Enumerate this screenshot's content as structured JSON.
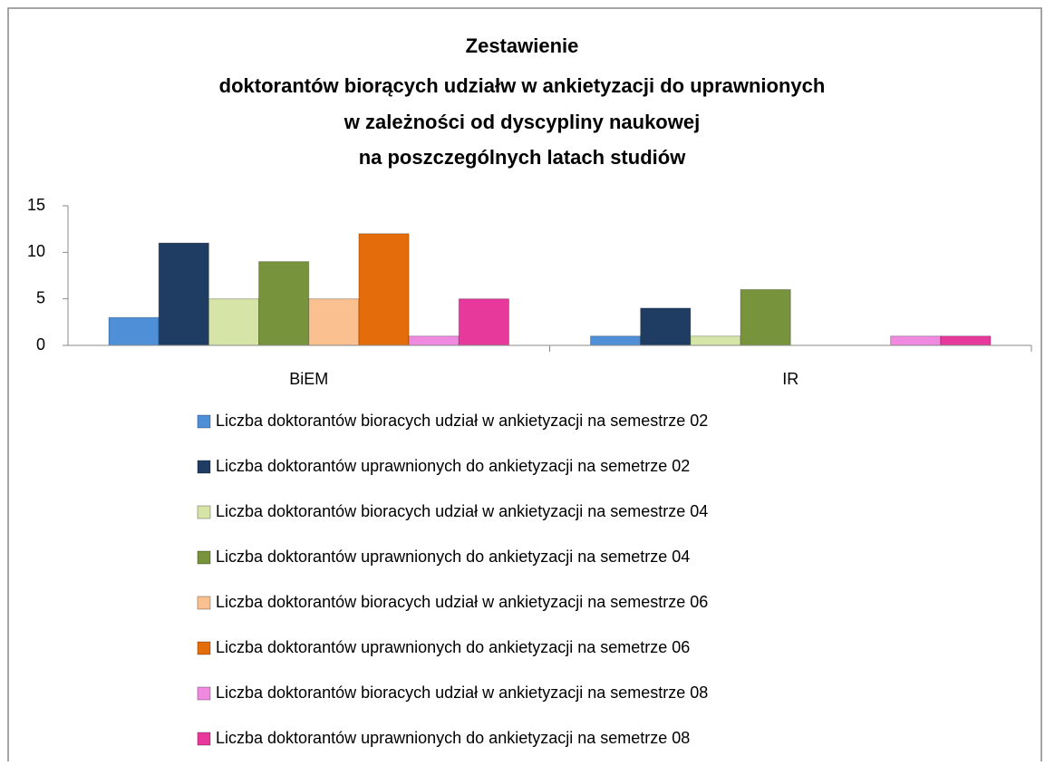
{
  "chart_data": {
    "type": "bar",
    "title": [
      "Zestawienie",
      "doktorantów biorących udziałw w ankietyzacji do uprawnionych",
      "w zależności od dyscypliny naukowej",
      "na poszczególnych latach studiów"
    ],
    "categories": [
      "BiEM",
      "IR"
    ],
    "series": [
      {
        "name": "Liczba doktorantów bioracych udział w ankietyzacji na semestrze 02",
        "color": "#4f8fd8",
        "values": [
          3,
          1
        ]
      },
      {
        "name": "Liczba doktorantów uprawnionych do ankietyzacji na semetrze 02",
        "color": "#1f3d63",
        "values": [
          11,
          4
        ]
      },
      {
        "name": "Liczba doktorantów bioracych udział w ankietyzacji na semestrze 04",
        "color": "#d7e4a8",
        "values": [
          5,
          1
        ]
      },
      {
        "name": "Liczba doktorantów uprawnionych do ankietyzacji na semetrze 04",
        "color": "#77933c",
        "values": [
          9,
          6
        ]
      },
      {
        "name": "Liczba doktorantów bioracych udział w ankietyzacji na semestrze 06",
        "color": "#fac090",
        "values": [
          5,
          0
        ]
      },
      {
        "name": "Liczba doktorantów uprawnionych do ankietyzacji na semetrze 06",
        "color": "#e46c0a",
        "values": [
          12,
          0
        ]
      },
      {
        "name": "Liczba doktorantów bioracych udział w ankietyzacji na semestrze 08",
        "color": "#f08ae0",
        "values": [
          1,
          1
        ]
      },
      {
        "name": "Liczba doktorantów uprawnionych do ankietyzacji na semetrze 08",
        "color": "#e6399b",
        "values": [
          5,
          1
        ]
      }
    ],
    "ylim": [
      0,
      15
    ],
    "yticks": [
      0,
      5,
      10,
      15
    ],
    "grid": false,
    "legend": "bottom"
  }
}
